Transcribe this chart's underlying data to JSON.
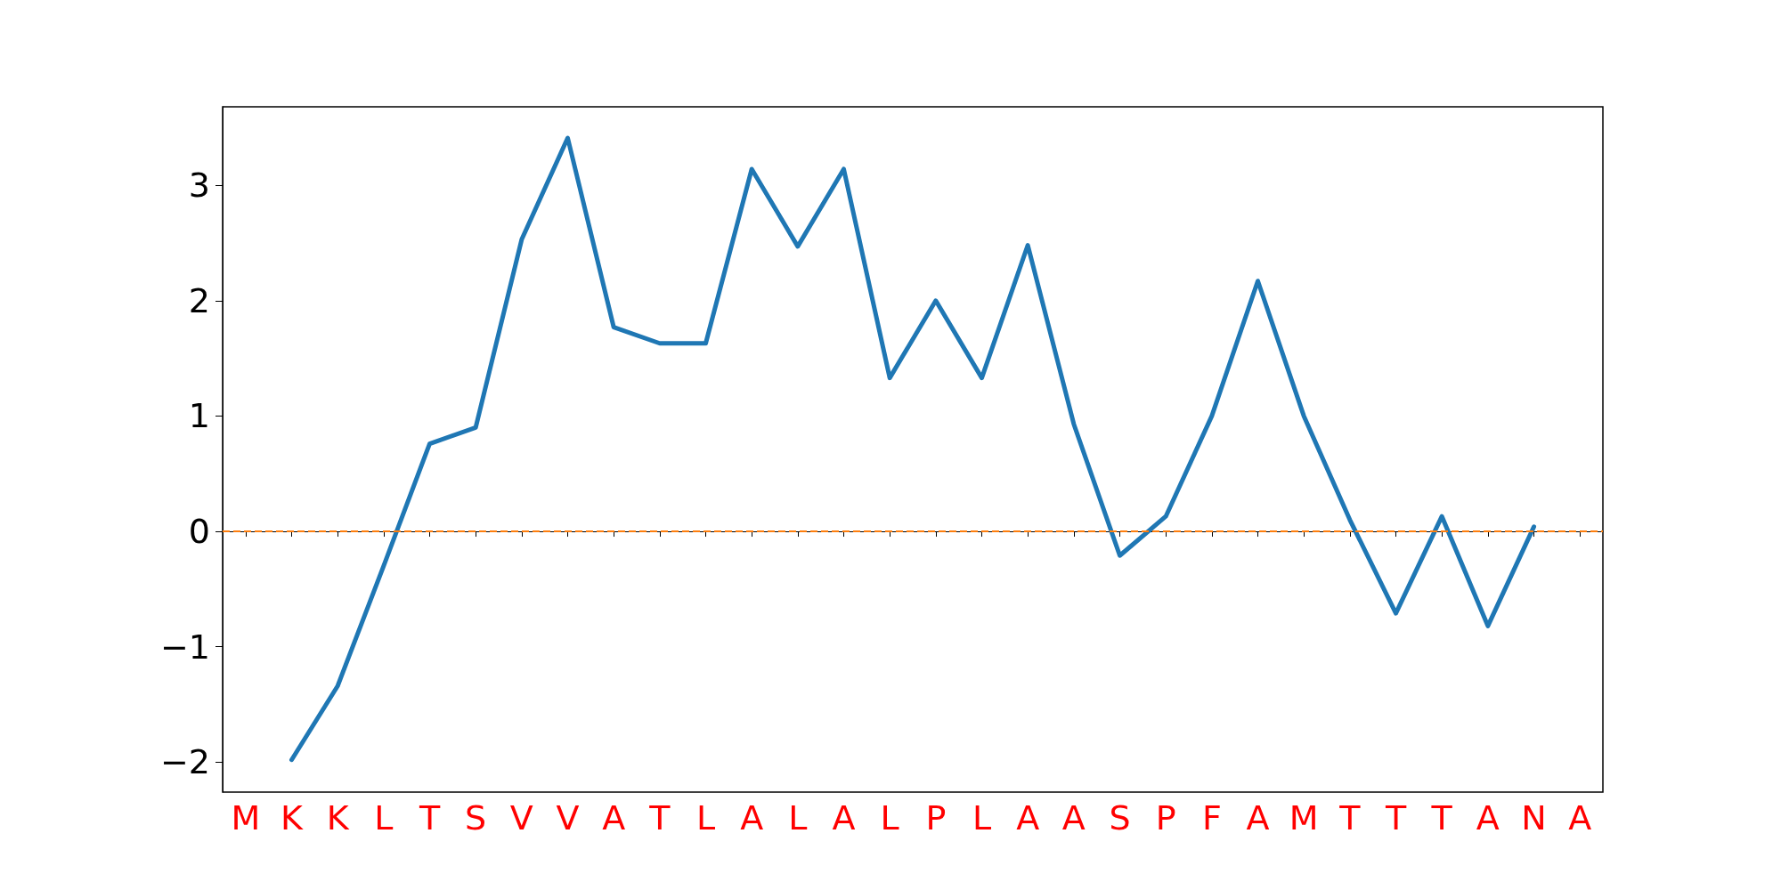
{
  "chart_data": {
    "type": "line",
    "categories": [
      "M",
      "K",
      "K",
      "L",
      "T",
      "S",
      "V",
      "V",
      "A",
      "T",
      "L",
      "A",
      "L",
      "A",
      "L",
      "P",
      "L",
      "A",
      "A",
      "S",
      "P",
      "F",
      "A",
      "M",
      "T",
      "T",
      "T",
      "A",
      "N",
      "A"
    ],
    "series": [
      {
        "color": "#1f77b4",
        "values": [
          null,
          -1.98,
          -1.34,
          -0.3,
          0.76,
          0.9,
          2.53,
          3.41,
          1.77,
          1.63,
          1.63,
          3.14,
          2.47,
          3.14,
          1.33,
          2.0,
          1.33,
          2.48,
          0.93,
          -0.21,
          0.13,
          1.0,
          2.17,
          1.0,
          0.1,
          -0.71,
          0.13,
          -0.82,
          0.04,
          null
        ]
      }
    ],
    "ylim": [
      -2.26,
      3.68
    ],
    "yticks": [
      -2,
      -1,
      0,
      1,
      2,
      3
    ],
    "ref_lines": [
      {
        "axis": "y",
        "value": 0,
        "color": "#ff7f0e",
        "line_style": "dashed"
      }
    ],
    "marker": "none",
    "line_style": "solid"
  }
}
